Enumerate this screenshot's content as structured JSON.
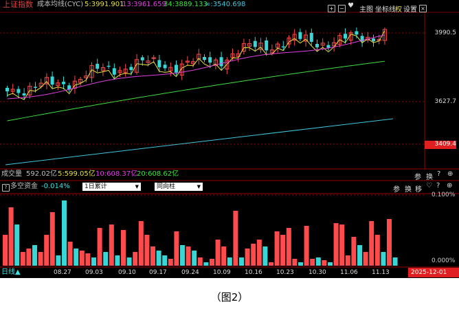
{
  "header": {
    "index_name": "上证指数",
    "indicator": "成本均线(CYC)",
    "ma5": "5:3991.901",
    "ma13": "13:3961.659",
    "ma34": "34:3889.133",
    "ma_inf": "∞:3540.698",
    "btn_main": "主图",
    "btn_coord": "坐标线",
    "btn_right": "权",
    "btn_settings": "设置"
  },
  "price_axis": {
    "top": "3990.5",
    "mid": "3627.7",
    "current": "3409.4"
  },
  "volume_bar": {
    "label": "成交量",
    "total": "592.02亿",
    "ma5": "5:599.05亿",
    "ma10": "10:608.37亿",
    "ma20": "20:608.62亿",
    "btn_ref": "参",
    "btn_switch": "换"
  },
  "fund_bar": {
    "label": "多空资金",
    "value": "-0.014%",
    "select1": "1日累计",
    "select2": "同向柱",
    "btn_ref": "参",
    "btn_switch": "换",
    "btn_move": "移",
    "axis_top": "0.100%",
    "axis_bottom": "0.000%"
  },
  "footer": {
    "period": "日线▲",
    "dates": [
      "08.27",
      "09.03",
      "09.10",
      "09.17",
      "09.24",
      "10.09",
      "10.16",
      "10.23",
      "10.30",
      "11.06",
      "11.13"
    ],
    "current_date": "2025-12-01"
  },
  "caption": "（图2）",
  "colors": {
    "up": "#ff4b4b",
    "down": "#39d6d6",
    "ma5": "#e8e040",
    "ma13": "#e040e0",
    "ma34": "#40e040",
    "ma_inf": "#40c8e0",
    "header_text": "#c0c0c0"
  },
  "icons": [
    "plus-icon",
    "minus-icon",
    "heart-icon",
    "close-icon",
    "help-icon",
    "heart-icon",
    "zoom-icon"
  ]
}
